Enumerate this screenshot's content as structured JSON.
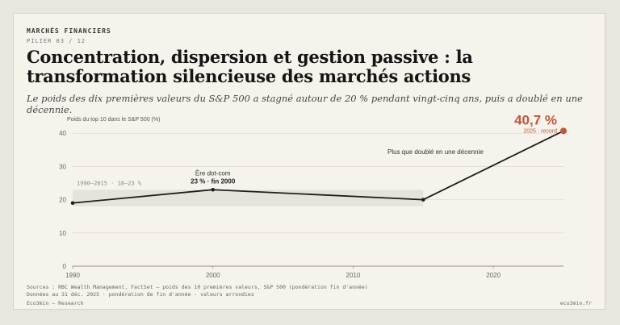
{
  "header": {
    "kicker": "MARCHÉS FINANCIERS",
    "pillar": "PILIER 03 / 12",
    "title": "Concentration, dispersion et gestion passive : la transformation silencieuse des marchés actions",
    "subtitle": "Le poids des dix premières valeurs du S&P 500 a stagné autour de 20 % pendant vingt-cinq ans, puis a doublé en une décennie."
  },
  "chart_data": {
    "type": "line",
    "ylabel": "Poids du top 10 dans le S&P 500 (%)",
    "xlabel": "",
    "xlim": [
      1990,
      2025
    ],
    "ylim": [
      0,
      42
    ],
    "x_ticks": [
      "1990",
      "2000",
      "2010",
      "2020"
    ],
    "y_ticks": [
      "0",
      "10",
      "20",
      "30",
      "40"
    ],
    "series": [
      {
        "values": [
          [
            1990,
            19
          ],
          [
            2000,
            23
          ],
          [
            2015,
            20
          ],
          [
            2025,
            40.7
          ]
        ]
      }
    ],
    "band": {
      "from_year": 1990,
      "to_year": 2015,
      "low": 18,
      "high": 23,
      "label": "1990–2015 · 18–23 %"
    },
    "annotations": {
      "dotcom_title": "Ère dot-com",
      "dotcom_value": "23 % · fin 2000",
      "doubled": "Plus que doublé en une décennie",
      "record_value": "40,7 %",
      "record_note": "2025 · record"
    },
    "colors": {
      "line": "#1e1e1e",
      "record": "#c0573b",
      "band": "#e6e3dc",
      "grid": "#e0dcd3"
    }
  },
  "footer": {
    "sources": "Sources : RBC Wealth Management, FactSet — poids des 10 premières valeurs, S&P 500 (pondération fin d'année)",
    "note": "Données au 31 déc. 2025 · pondération de fin d'année · valeurs arrondies",
    "brand": "Eco3min — Research",
    "site": "eco3min.fr"
  }
}
